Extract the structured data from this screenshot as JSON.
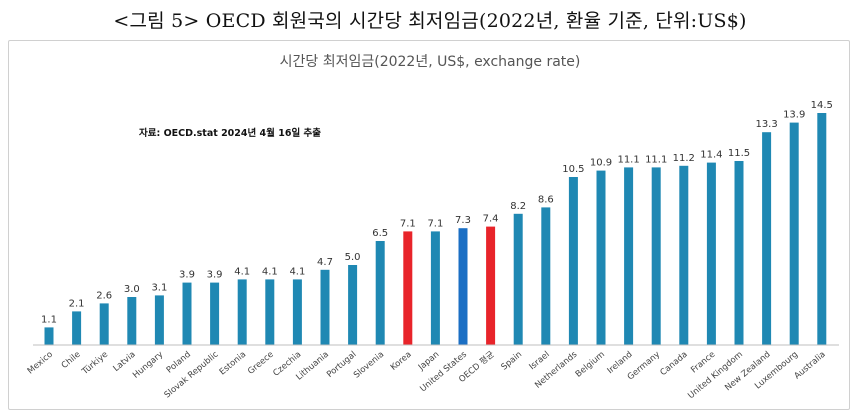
{
  "caption": "<그림 5> OECD 회원국의 시간당 최저임금(2022년, 환율 기준, 단위:US$)",
  "chart_data": {
    "type": "bar",
    "title": "시간당 최저임금(2022년, US$, exchange rate)",
    "source_note": "자료: OECD.stat 2024년 4월 16일 추출",
    "xlabel": "",
    "ylabel": "",
    "ylim": [
      0,
      15
    ],
    "grid": false,
    "legend": "none",
    "categories": [
      "Mexico",
      "Chile",
      "Türkiye",
      "Latvia",
      "Hungary",
      "Poland",
      "Slovak Republic",
      "Estonia",
      "Greece",
      "Czechia",
      "Lithuania",
      "Portugal",
      "Slovenia",
      "Korea",
      "Japan",
      "United States",
      "OECD 평균",
      "Spain",
      "Israel",
      "Netherlands",
      "Belgium",
      "Ireland",
      "Germany",
      "Canada",
      "France",
      "United Kingdom",
      "New Zealand",
      "Luxembourg",
      "Australia"
    ],
    "values": [
      1.1,
      2.1,
      2.6,
      3.0,
      3.1,
      3.9,
      3.9,
      4.1,
      4.1,
      4.1,
      4.7,
      5.0,
      6.5,
      7.1,
      7.1,
      7.3,
      7.4,
      8.2,
      8.6,
      10.5,
      10.9,
      11.1,
      11.1,
      11.2,
      11.4,
      11.5,
      13.3,
      13.9,
      14.5
    ],
    "value_labels": [
      "1.1",
      "2.1",
      "2.6",
      "3.0",
      "3.1",
      "3.9",
      "3.9",
      "4.1",
      "4.1",
      "4.1",
      "4.7",
      "5.0",
      "6.5",
      "7.1",
      "7.1",
      "7.3",
      "7.4",
      "8.2",
      "8.6",
      "10.5",
      "10.9",
      "11.1",
      "11.1",
      "11.2",
      "11.4",
      "11.5",
      "13.3",
      "13.9",
      "14.5"
    ],
    "colors": {
      "default": "#1f88b3",
      "highlight_red": "#e8242a",
      "highlight_blue": "#1b6fc4",
      "axis": "#bfbfbf",
      "text": "#333333"
    },
    "highlight_red": [
      "Korea",
      "OECD 평균"
    ],
    "highlight_blue": [
      "United States"
    ]
  }
}
